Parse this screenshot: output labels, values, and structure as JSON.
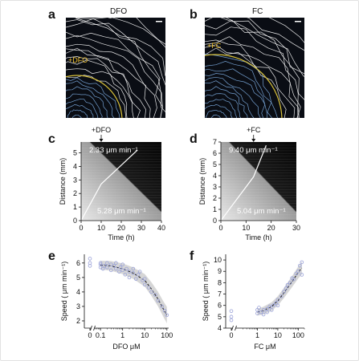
{
  "panels": {
    "a": {
      "letter": "a",
      "title": "DFO",
      "label": "+DFO"
    },
    "b": {
      "letter": "b",
      "title": "FC",
      "label": "+FC"
    },
    "c": {
      "letter": "c",
      "top_label": "+DFO",
      "upper_speed": "2.33 μm min⁻¹",
      "lower_speed": "5.28 μm min⁻¹"
    },
    "d": {
      "letter": "d",
      "top_label": "+FC",
      "upper_speed": "9.40 μm min⁻¹",
      "lower_speed": "5.04 μm min⁻¹"
    },
    "e": {
      "letter": "e"
    },
    "f": {
      "letter": "f"
    }
  },
  "colors": {
    "contour_inner": "#7fb0e6",
    "contour_outer": "#ffffff",
    "boundary": "#d9c23a",
    "label": "#f0c230",
    "dot": "#9aa2d8",
    "band": "#c4c4c4"
  },
  "chart_data": [
    {
      "panel": "c",
      "type": "line",
      "xlabel": "Time (h)",
      "ylabel": "Distance (mm)",
      "xlim": [
        0,
        40
      ],
      "ylim": [
        0,
        5.8
      ],
      "xticks": [
        "0",
        "10",
        "20",
        "30",
        "40"
      ],
      "yticks": [
        "0",
        "1",
        "2",
        "3",
        "4",
        "5"
      ],
      "series": [
        {
          "x": [
            0,
            10,
            28
          ],
          "y": [
            0,
            2.7,
            5.2
          ]
        }
      ],
      "annotations": [
        "+DFO",
        "2.33 μm min⁻¹",
        "5.28 μm min⁻¹"
      ]
    },
    {
      "panel": "d",
      "type": "line",
      "xlabel": "Time (h)",
      "ylabel": "Distance (mm)",
      "xlim": [
        0,
        30
      ],
      "ylim": [
        0,
        7
      ],
      "xticks": [
        "0",
        "10",
        "20",
        "30"
      ],
      "yticks": [
        "0",
        "1",
        "2",
        "3",
        "4",
        "5",
        "6",
        "7"
      ],
      "series": [
        {
          "x": [
            0,
            13,
            18
          ],
          "y": [
            0,
            3.9,
            6.7
          ]
        }
      ],
      "annotations": [
        "+FC",
        "9.40 μm min⁻¹",
        "5.04 μm min⁻¹"
      ]
    },
    {
      "panel": "e",
      "type": "scatter",
      "xlabel": "DFO μM",
      "ylabel": "Speed ( μm min⁻¹)",
      "xscale": "log",
      "xlim": [
        0.06,
        120
      ],
      "ylim": [
        1.5,
        6.6
      ],
      "xticks": [
        "0",
        "0.1",
        "1",
        "10",
        "100"
      ],
      "yticks": [
        "2",
        "3",
        "4",
        "5",
        "6"
      ],
      "points": [
        [
          0,
          6.3
        ],
        [
          0,
          6.0
        ],
        [
          0,
          5.8
        ],
        [
          0.1,
          5.9
        ],
        [
          0.1,
          5.7
        ],
        [
          0.1,
          6.0
        ],
        [
          0.13,
          5.6
        ],
        [
          0.15,
          5.8
        ],
        [
          0.2,
          6.0
        ],
        [
          0.2,
          5.7
        ],
        [
          0.3,
          5.5
        ],
        [
          0.3,
          5.9
        ],
        [
          0.4,
          5.8
        ],
        [
          0.5,
          5.6
        ],
        [
          0.5,
          6.0
        ],
        [
          0.7,
          5.4
        ],
        [
          0.8,
          5.7
        ],
        [
          1,
          5.5
        ],
        [
          1,
          5.9
        ],
        [
          1.3,
          5.2
        ],
        [
          1.5,
          5.6
        ],
        [
          2,
          5.4
        ],
        [
          2,
          5.0
        ],
        [
          3,
          5.3
        ],
        [
          3,
          5.6
        ],
        [
          4,
          4.9
        ],
        [
          5,
          5.2
        ],
        [
          6,
          5.4
        ],
        [
          8,
          4.8
        ],
        [
          10,
          4.9
        ],
        [
          10,
          4.5
        ],
        [
          15,
          4.3
        ],
        [
          20,
          4.0
        ],
        [
          30,
          3.8
        ],
        [
          40,
          3.4
        ],
        [
          60,
          3.0
        ],
        [
          80,
          2.7
        ],
        [
          100,
          2.4
        ]
      ],
      "fit": {
        "x": [
          0.1,
          0.3,
          1,
          3,
          10,
          20,
          40,
          70,
          100
        ],
        "y": [
          5.85,
          5.8,
          5.6,
          5.3,
          4.8,
          4.2,
          3.5,
          2.8,
          2.4
        ]
      },
      "band_width": 0.3
    },
    {
      "panel": "f",
      "type": "scatter",
      "xlabel": "FC μM",
      "ylabel": "Speed ( μm min⁻¹)",
      "xscale": "log",
      "xlim": [
        0.1,
        200
      ],
      "ylim": [
        4,
        10.5
      ],
      "xticks": [
        "0",
        "1",
        "10",
        "100"
      ],
      "yticks": [
        "4",
        "5",
        "6",
        "7",
        "8",
        "9",
        "10"
      ],
      "points": [
        [
          0,
          5.5
        ],
        [
          0,
          5.0
        ],
        [
          0,
          4.7
        ],
        [
          1,
          5.6
        ],
        [
          1,
          5.3
        ],
        [
          1.2,
          5.8
        ],
        [
          1.5,
          5.4
        ],
        [
          2,
          5.6
        ],
        [
          2,
          5.2
        ],
        [
          3,
          5.7
        ],
        [
          3,
          5.4
        ],
        [
          4,
          5.9
        ],
        [
          5,
          5.6
        ],
        [
          6,
          6.0
        ],
        [
          8,
          6.2
        ],
        [
          10,
          6.5
        ],
        [
          10,
          6.0
        ],
        [
          15,
          6.8
        ],
        [
          20,
          7.2
        ],
        [
          25,
          7.5
        ],
        [
          30,
          7.8
        ],
        [
          40,
          8.0
        ],
        [
          50,
          8.4
        ],
        [
          60,
          8.3
        ],
        [
          80,
          8.8
        ],
        [
          100,
          9.0
        ],
        [
          120,
          9.5
        ],
        [
          150,
          9.8
        ],
        [
          150,
          8.7
        ]
      ],
      "fit": {
        "x": [
          1,
          2,
          5,
          10,
          20,
          50,
          100,
          150
        ],
        "y": [
          5.4,
          5.55,
          5.9,
          6.4,
          7.1,
          8.1,
          8.9,
          9.3
        ]
      },
      "band_width": 0.3
    }
  ]
}
